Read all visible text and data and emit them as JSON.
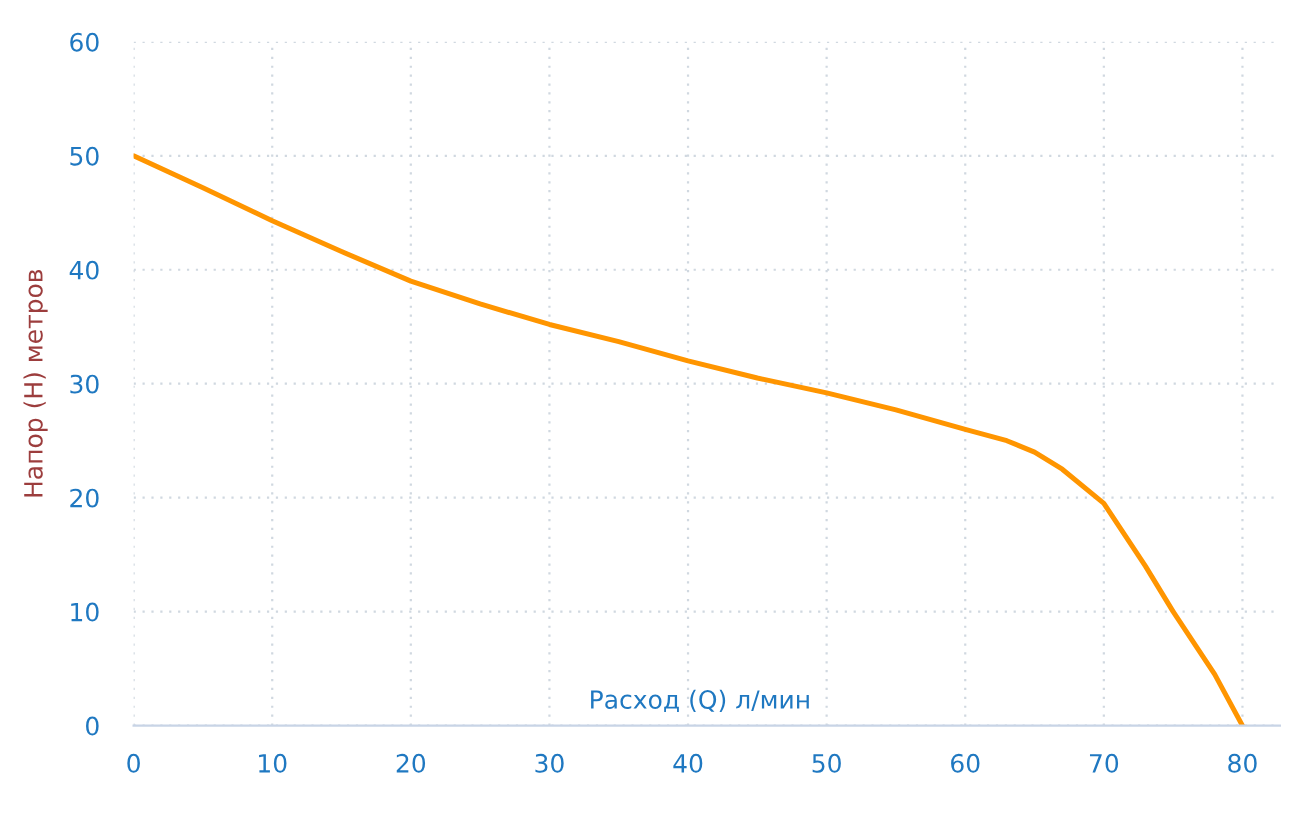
{
  "chart_data": {
    "type": "line",
    "xlabel": "Расход (Q) л/мин",
    "ylabel": "Напор (H) метров",
    "x": [
      0,
      5,
      10,
      15,
      20,
      25,
      30,
      35,
      40,
      45,
      50,
      55,
      60,
      63,
      65,
      67,
      70,
      73,
      75,
      78,
      80
    ],
    "series": [
      {
        "color": "#ff9500",
        "values": [
          50,
          47.2,
          44.3,
          41.6,
          39,
          37,
          35.2,
          33.7,
          32,
          30.5,
          29.2,
          27.7,
          26,
          25,
          24,
          22.5,
          19.5,
          14,
          10,
          4.5,
          0
        ]
      }
    ],
    "xlim": [
      0,
      82.7
    ],
    "xticks": [
      0,
      10,
      20,
      30,
      40,
      50,
      60,
      70,
      80
    ],
    "ylim": [
      0,
      60
    ],
    "yticks": [
      0,
      10,
      20,
      30,
      40,
      50,
      60
    ],
    "grid": true,
    "marker": "none",
    "line_style": "solid"
  }
}
